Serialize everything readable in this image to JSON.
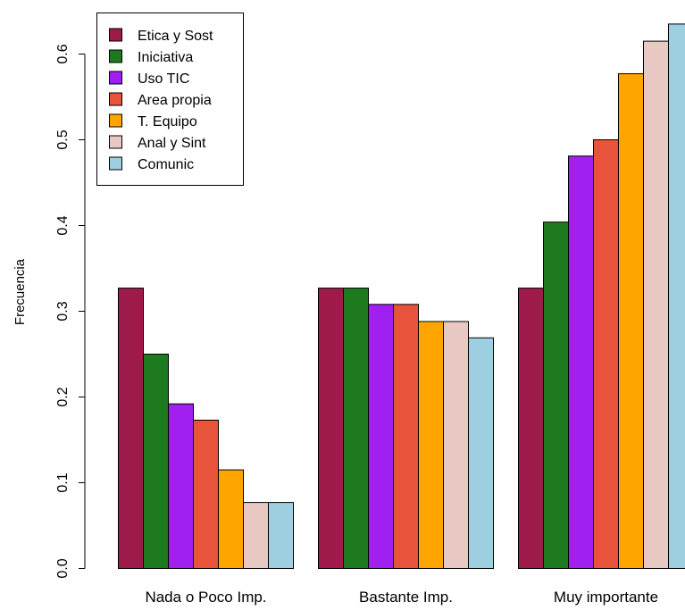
{
  "chart_data": {
    "type": "bar",
    "grouped": true,
    "title": "",
    "xlabel": "",
    "ylabel": "Frecuencia",
    "ylim": [
      0,
      0.65
    ],
    "yticks": [
      "0.0",
      "0.1",
      "0.2",
      "0.3",
      "0.4",
      "0.5",
      "0.6"
    ],
    "ytick_values": [
      0,
      0.1,
      0.2,
      0.3,
      0.4,
      0.5,
      0.6
    ],
    "grid": false,
    "legend_position": "top-left",
    "categories": [
      "Nada o Poco Imp.",
      "Bastante Imp.",
      "Muy importante"
    ],
    "series": [
      {
        "name": "Etica y Sost",
        "color": "#9E1A4A",
        "values": [
          0.327,
          0.327,
          0.327
        ]
      },
      {
        "name": "Iniciativa",
        "color": "#1E7A1E",
        "values": [
          0.25,
          0.327,
          0.404
        ]
      },
      {
        "name": "Uso TIC",
        "color": "#A020F0",
        "values": [
          0.192,
          0.308,
          0.481
        ]
      },
      {
        "name": "Area propia",
        "color": "#E8533C",
        "values": [
          0.173,
          0.308,
          0.5
        ]
      },
      {
        "name": "T. Equipo",
        "color": "#FFA500",
        "values": [
          0.115,
          0.288,
          0.577
        ]
      },
      {
        "name": "Anal y Sint",
        "color": "#E8C8C3",
        "values": [
          0.077,
          0.288,
          0.615
        ]
      },
      {
        "name": "Comunic",
        "color": "#9ECFE0",
        "values": [
          0.077,
          0.269,
          0.635
        ]
      }
    ]
  }
}
